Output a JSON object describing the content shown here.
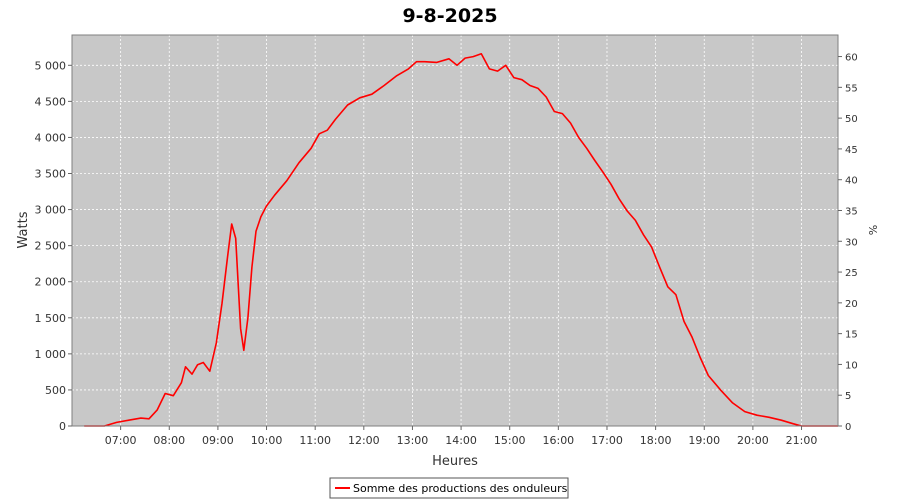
{
  "chart_data": {
    "type": "line",
    "title": "9-8-2025",
    "xlabel": "Heures",
    "ylabel": "Watts",
    "y2label": "%",
    "x_ticks": [
      "07:00",
      "08:00",
      "09:00",
      "10:00",
      "11:00",
      "12:00",
      "13:00",
      "14:00",
      "15:00",
      "16:00",
      "17:00",
      "18:00",
      "19:00",
      "20:00",
      "21:00"
    ],
    "y_ticks": [
      "0",
      "500",
      "1 000",
      "1 500",
      "2 000",
      "2 500",
      "3 000",
      "3 500",
      "4 000",
      "4 500",
      "5 000"
    ],
    "y2_ticks": [
      "0",
      "5",
      "10",
      "15",
      "20",
      "25",
      "30",
      "35",
      "40",
      "45",
      "50",
      "55",
      "60"
    ],
    "xlim": [
      "06:00",
      "21:45"
    ],
    "ylim": [
      0,
      5420
    ],
    "y2lim": [
      0,
      63.5
    ],
    "grid": true,
    "background": "#c8c8c8",
    "line_color": "#ff0000",
    "legend_position": "bottom-center",
    "series": [
      {
        "name": "Somme des productions des onduleurs",
        "x": [
          "06:15",
          "06:40",
          "06:55",
          "07:10",
          "07:25",
          "07:35",
          "07:45",
          "07:55",
          "08:05",
          "08:15",
          "08:20",
          "08:28",
          "08:35",
          "08:42",
          "08:50",
          "08:58",
          "09:05",
          "09:12",
          "09:17",
          "09:22",
          "09:28",
          "09:32",
          "09:37",
          "09:42",
          "09:47",
          "09:53",
          "10:00",
          "10:10",
          "10:25",
          "10:40",
          "10:55",
          "11:05",
          "11:15",
          "11:25",
          "11:40",
          "11:55",
          "12:10",
          "12:25",
          "12:40",
          "12:55",
          "13:05",
          "13:15",
          "13:30",
          "13:45",
          "13:55",
          "14:05",
          "14:15",
          "14:25",
          "14:35",
          "14:45",
          "14:55",
          "15:05",
          "15:15",
          "15:25",
          "15:35",
          "15:45",
          "15:55",
          "16:05",
          "16:15",
          "16:25",
          "16:35",
          "16:45",
          "16:55",
          "17:05",
          "17:15",
          "17:25",
          "17:35",
          "17:45",
          "17:55",
          "18:05",
          "18:15",
          "18:25",
          "18:35",
          "18:45",
          "18:55",
          "19:05",
          "19:20",
          "19:35",
          "19:50",
          "20:05",
          "20:20",
          "20:35",
          "20:50",
          "21:00",
          "21:15",
          "21:30",
          "21:45"
        ],
        "values": [
          0,
          0,
          50,
          80,
          110,
          100,
          220,
          450,
          420,
          600,
          820,
          720,
          850,
          880,
          760,
          1150,
          1700,
          2350,
          2800,
          2600,
          1350,
          1050,
          1500,
          2200,
          2700,
          2900,
          3050,
          3200,
          3400,
          3650,
          3850,
          4050,
          4100,
          4250,
          4450,
          4550,
          4600,
          4720,
          4850,
          4950,
          5050,
          5050,
          5040,
          5090,
          5000,
          5100,
          5120,
          5160,
          4950,
          4920,
          5000,
          4830,
          4800,
          4720,
          4680,
          4560,
          4360,
          4330,
          4200,
          4000,
          3850,
          3680,
          3520,
          3350,
          3150,
          2980,
          2850,
          2650,
          2480,
          2200,
          1930,
          1820,
          1450,
          1230,
          950,
          700,
          500,
          320,
          200,
          150,
          120,
          80,
          30,
          0,
          0,
          0,
          0
        ]
      }
    ]
  }
}
